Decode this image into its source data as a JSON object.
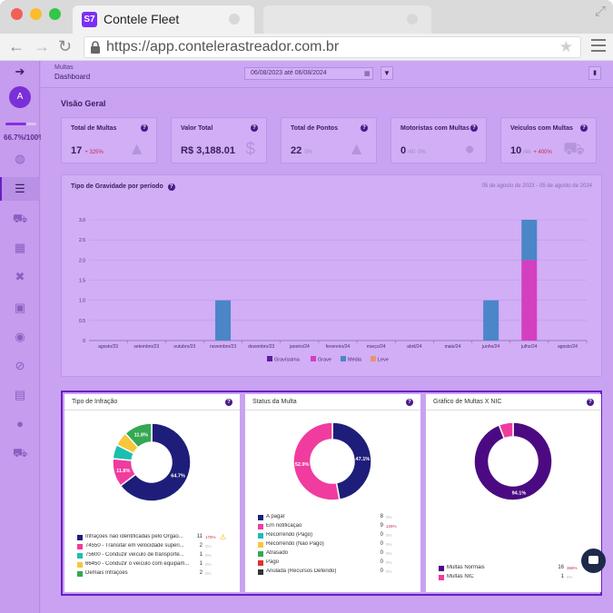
{
  "browser": {
    "tab_title": "Contele Fleet",
    "logo_text": "S7",
    "url": "https://app.contelerastreador.com.br"
  },
  "sidebar": {
    "avatar": "A",
    "progress": 0.667,
    "progress_text": "66.7%/100%"
  },
  "topbar": {
    "breadcrumb_parent": "Multas",
    "breadcrumb_current": "Dashboard",
    "date_range": "06/08/2023 até 06/08/2024"
  },
  "overview": {
    "title": "Visão Geral",
    "kpis": [
      {
        "label": "Total de Multas",
        "value": "17",
        "sub": "",
        "delta": "+ 325%",
        "delta_color": "#c0304a",
        "icon": "warning-icon"
      },
      {
        "label": "Valor Total",
        "value": "R$ 3,188.01",
        "sub": "",
        "delta": "",
        "delta_color": "#a08ab8",
        "icon": "dollar-icon"
      },
      {
        "label": "Total de Pontos",
        "value": "22",
        "sub": "",
        "delta": "0%",
        "delta_color": "#a08ab8",
        "icon": "warning-icon"
      },
      {
        "label": "Motoristas com Multas",
        "value": "0",
        "sub": "/40",
        "delta": "0%",
        "delta_color": "#a08ab8",
        "icon": "user-icon"
      },
      {
        "label": "Veículos com Multas",
        "value": "10",
        "sub": "/44",
        "delta": "+ 400%",
        "delta_color": "#c0304a",
        "icon": "car-icon"
      }
    ]
  },
  "gravity_chart": {
    "title": "Tipo de Gravidade por período",
    "range": "05 de agosto de 2023 - 05 de agosto de 2024"
  },
  "chart_data": [
    {
      "type": "bar",
      "stacked": true,
      "categories": [
        "agosto/23",
        "setembro/23",
        "outubro/23",
        "novembro/23",
        "dezembro/23",
        "janeiro/24",
        "fevereiro/24",
        "março/24",
        "abril/24",
        "maio/24",
        "junho/24",
        "julho/24",
        "agosto/24"
      ],
      "series": [
        {
          "name": "Gravíssima",
          "color": "#5b1f9e",
          "values": [
            0,
            0,
            0,
            0,
            0,
            0,
            0,
            0,
            0,
            0,
            0,
            0,
            0
          ]
        },
        {
          "name": "Grave",
          "color": "#d43fbf",
          "values": [
            0,
            0,
            0,
            0,
            0,
            0,
            0,
            0,
            0,
            0,
            0,
            2,
            0
          ]
        },
        {
          "name": "Média",
          "color": "#4a86c8",
          "values": [
            0,
            0,
            0,
            1,
            0,
            0,
            0,
            0,
            0,
            0,
            1,
            1,
            0
          ]
        },
        {
          "name": "Leve",
          "color": "#e8956b",
          "values": [
            0,
            0,
            0,
            0,
            0,
            0,
            0,
            0,
            0,
            0,
            0,
            0,
            0
          ]
        }
      ],
      "yticks": [
        "0",
        "0.5",
        "1.0",
        "1.5",
        "2.0",
        "2.5",
        "3.0"
      ],
      "ylim": [
        0,
        3
      ],
      "legend": "bottom"
    },
    {
      "type": "pie",
      "title": "Tipo de Infração",
      "labels": [
        "Infrações não identificadas pelo Orgão...",
        "74550 - Transitar em velocidade superi...",
        "75600 - Conduzir veículo de transporte...",
        "66450 - Conduzir o veículo com equipam...",
        "Demais Infrações"
      ],
      "values": [
        11,
        2,
        1,
        1,
        2
      ],
      "slice_labels": [
        "64.7%",
        "11.8%",
        "",
        "",
        "11.8%"
      ],
      "pcts": [
        "175%",
        "0%",
        "0%",
        "0%",
        "0%"
      ],
      "pct_colors": [
        "#c0304a",
        "#bbb",
        "#bbb",
        "#bbb",
        "#bbb"
      ],
      "colors": [
        "#1e1e7a",
        "#f03c9e",
        "#1bbfae",
        "#f8c63a",
        "#34a853"
      ]
    },
    {
      "type": "pie",
      "title": "Status da Multa",
      "labels": [
        "A pagar",
        "Em notificação",
        "Recorrendo (Pago)",
        "Recorrendo (Não Pago)",
        "Atrasado",
        "Pago",
        "Anulada (Recursos Deferido)"
      ],
      "values": [
        8,
        9,
        0,
        0,
        0,
        0,
        0
      ],
      "slice_labels": [
        "47.1%",
        "52.9%",
        "",
        "",
        "",
        "",
        ""
      ],
      "pcts": [
        "0%",
        "125%",
        "0%",
        "0%",
        "0%",
        "0%",
        "0%"
      ],
      "pct_colors": [
        "#bbb",
        "#c0304a",
        "#bbb",
        "#bbb",
        "#bbb",
        "#bbb",
        "#bbb"
      ],
      "colors": [
        "#1e1e7a",
        "#f03c9e",
        "#1bbfae",
        "#f8c63a",
        "#34a853",
        "#e03030",
        "#333333"
      ]
    },
    {
      "type": "pie",
      "title": "Gráfico de Multas X NIC",
      "labels": [
        "Multas Normais",
        "Multas NIC"
      ],
      "values": [
        16,
        1
      ],
      "slice_labels": [
        "94.1%",
        ""
      ],
      "pcts": [
        "366%",
        "0%"
      ],
      "pct_colors": [
        "#c0304a",
        "#bbb"
      ],
      "colors": [
        "#4b0a82",
        "#f03c9e"
      ]
    }
  ]
}
